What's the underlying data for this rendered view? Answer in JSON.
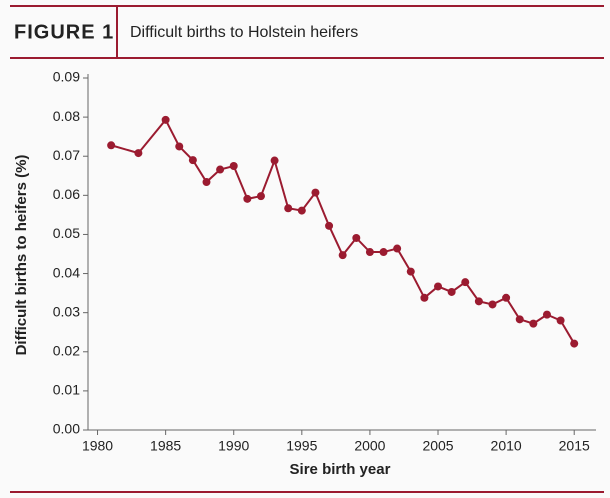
{
  "chart_data": {
    "type": "line",
    "figure_label": "FIGURE 1",
    "title": "Difficult births to Holstein heifers",
    "x_label": "Sire birth year",
    "y_label": "Difficult births to heifers (%)",
    "x": [
      1981,
      1983,
      1985,
      1986,
      1987,
      1988,
      1989,
      1990,
      1991,
      1992,
      1993,
      1994,
      1995,
      1996,
      1997,
      1998,
      1999,
      2000,
      2001,
      2002,
      2003,
      2004,
      2005,
      2006,
      2007,
      2008,
      2009,
      2010,
      2011,
      2012,
      2013,
      2014,
      2015
    ],
    "series": [
      {
        "color": "#9b1b30",
        "values": [
          0.0728,
          0.0708,
          0.0793,
          0.0725,
          0.069,
          0.0634,
          0.0666,
          0.0675,
          0.0591,
          0.0598,
          0.0689,
          0.0567,
          0.0561,
          0.0607,
          0.0522,
          0.0447,
          0.0491,
          0.0455,
          0.0455,
          0.0464,
          0.0405,
          0.0338,
          0.0367,
          0.0353,
          0.0378,
          0.0329,
          0.0321,
          0.0338,
          0.0283,
          0.0272,
          0.0295,
          0.028,
          0.0221
        ]
      }
    ],
    "xlim": [
      1979.3,
      2016.6
    ],
    "xticks": [
      1980,
      1985,
      1990,
      1995,
      2000,
      2005,
      2010,
      2015
    ],
    "ylim": [
      0,
      0.09
    ],
    "yticks": [
      {
        "value": 0,
        "label": "0.00"
      },
      0.01,
      0.02,
      0.03,
      0.04,
      0.05,
      0.06,
      0.07,
      0.08,
      0.09
    ]
  }
}
